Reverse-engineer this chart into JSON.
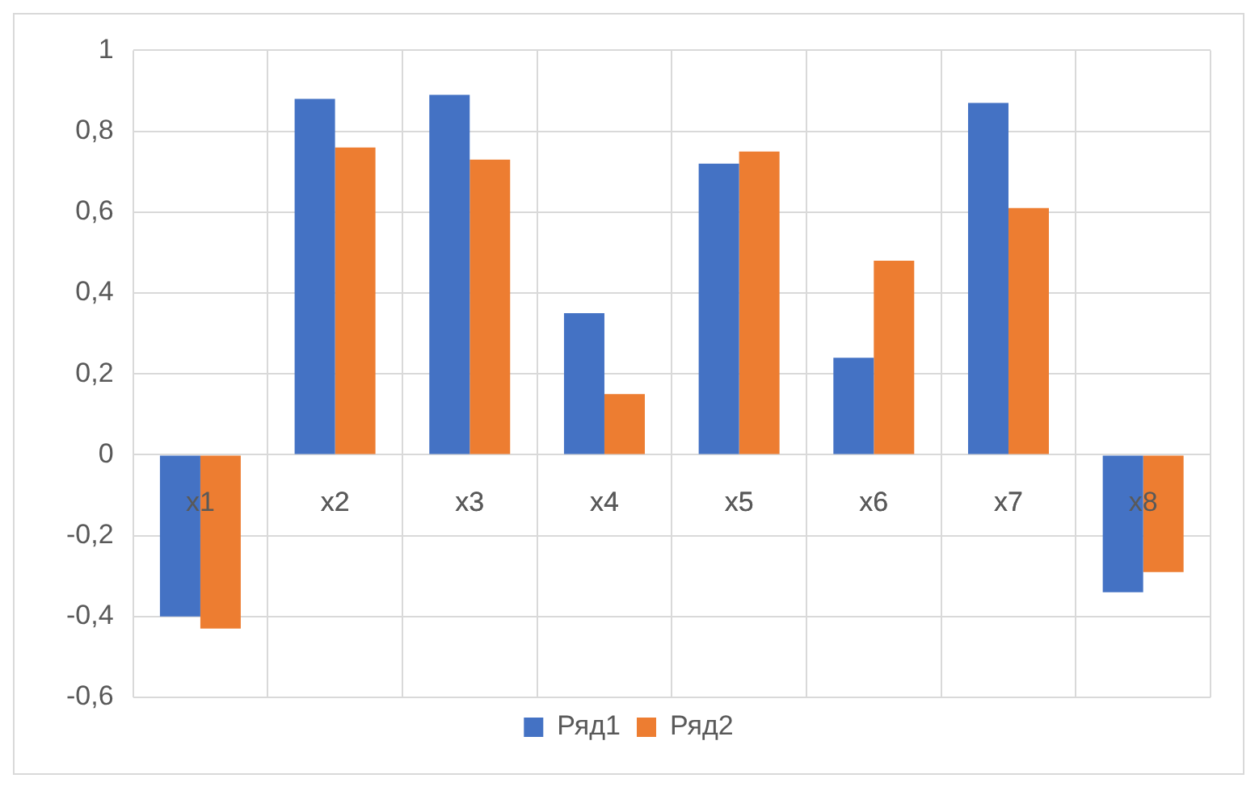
{
  "chart_data": {
    "type": "bar",
    "categories": [
      "x1",
      "x2",
      "x3",
      "x4",
      "x5",
      "x6",
      "x7",
      "x8"
    ],
    "series": [
      {
        "name": "Ряд1",
        "color": "#4472c4",
        "values": [
          -0.4,
          0.88,
          0.89,
          0.35,
          0.72,
          0.24,
          0.87,
          -0.34
        ]
      },
      {
        "name": "Ряд2",
        "color": "#ed7d31",
        "values": [
          -0.43,
          0.76,
          0.73,
          0.15,
          0.75,
          0.48,
          0.61,
          -0.29
        ]
      }
    ],
    "ylim": [
      -0.6,
      1
    ],
    "yticks": [
      {
        "value": -0.6,
        "label": "-0,6"
      },
      {
        "value": -0.4,
        "label": "-0,4"
      },
      {
        "value": -0.2,
        "label": "-0,2"
      },
      0,
      {
        "value": 0.2,
        "label": "0,2"
      },
      {
        "value": 0.4,
        "label": "0,4"
      },
      {
        "value": 0.6,
        "label": "0,6"
      },
      {
        "value": 0.8,
        "label": "0,8"
      },
      1
    ],
    "grid": true,
    "legend": "bottom"
  }
}
